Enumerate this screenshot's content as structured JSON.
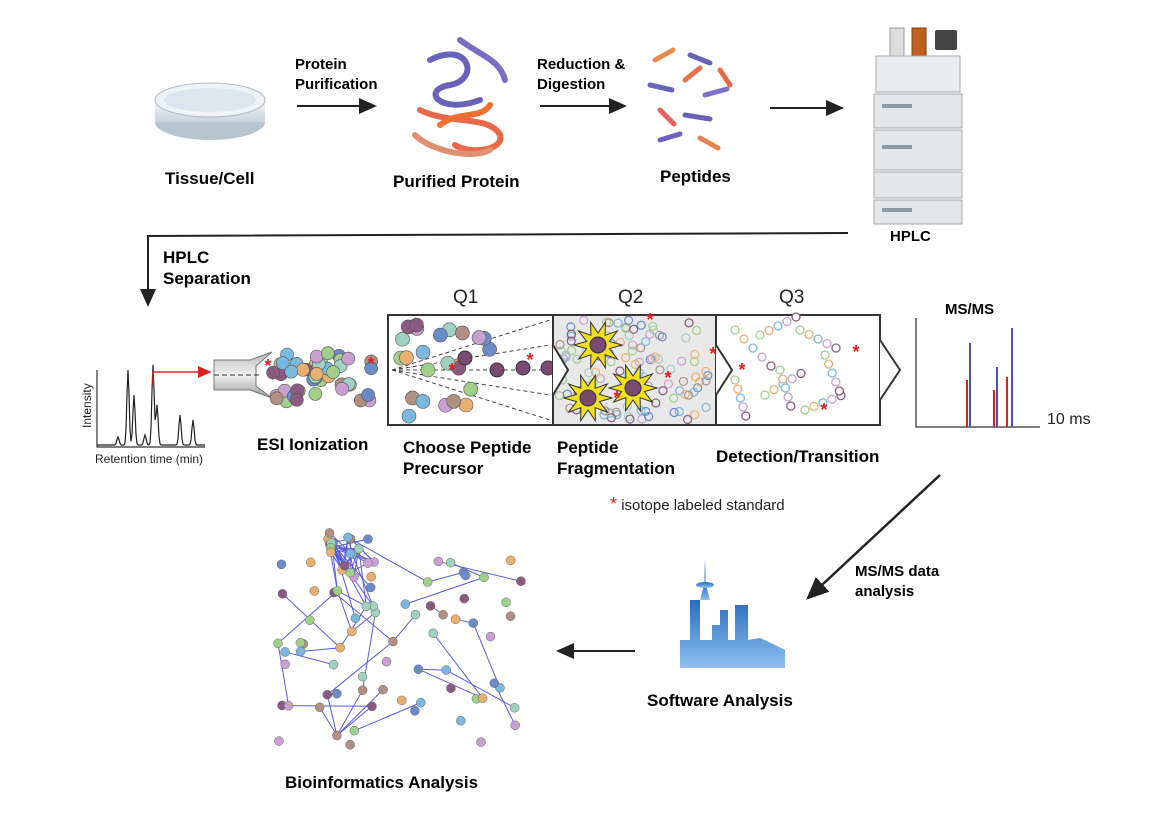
{
  "steps": {
    "tissue": "Tissue/Cell",
    "purification": [
      "Protein",
      "Purification"
    ],
    "purified_protein": "Purified Protein",
    "digestion": [
      "Reduction &",
      "Digestion"
    ],
    "peptides": "Peptides",
    "hplc": "HPLC",
    "hplc_separation": [
      "HPLC",
      "Separation"
    ],
    "esi": "ESI Ionization",
    "choose": [
      "Choose Peptide",
      "Precursor"
    ],
    "fragmentation": [
      "Peptide",
      "Fragmentation"
    ],
    "detection": "Detection/Transition",
    "msms": "MS/MS",
    "msms_time": "10 ms",
    "data_analysis": [
      "MS/MS data",
      "analysis"
    ],
    "software": "Software Analysis",
    "bioinformatics": "Bioinformatics Analysis"
  },
  "quadrupoles": [
    "Q1",
    "Q2",
    "Q3"
  ],
  "chromatogram": {
    "ylabel": "Intensity",
    "xlabel": "Retention time (min)"
  },
  "legend": {
    "symbol": "*",
    "text": "isotope labeled standard"
  },
  "colors": {
    "isotope": "#e02020",
    "arrow": "#222222",
    "red_peak": "#e02020",
    "blue_peak": "#5050b0",
    "skyline": "#3d7fd0"
  }
}
